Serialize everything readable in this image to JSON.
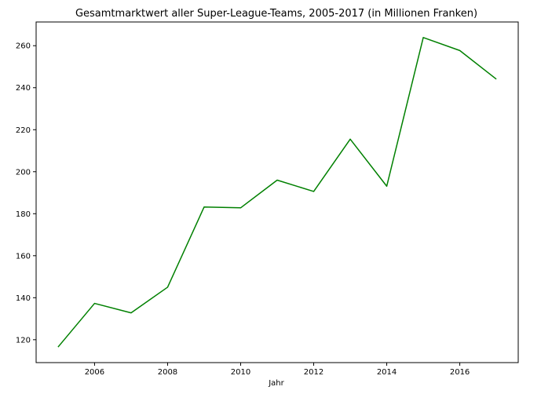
{
  "chart_data": {
    "type": "line",
    "title": "Gesamtmarktwert aller Super-League-Teams, 2005-2017 (in Millionen Franken)",
    "xlabel": "Jahr",
    "ylabel": "",
    "x": [
      2005,
      2006,
      2007,
      2008,
      2009,
      2010,
      2011,
      2012,
      2013,
      2014,
      2015,
      2016,
      2017
    ],
    "series": [
      {
        "values": [
          116.5,
          137.3,
          132.8,
          145.0,
          183.2,
          182.8,
          196.0,
          190.6,
          215.5,
          193.1,
          263.9,
          257.7,
          244.1
        ],
        "color": "#008000"
      }
    ],
    "xlim": [
      2004.4,
      2017.6
    ],
    "ylim": [
      109.1,
      271.3
    ],
    "xticks": [
      2006,
      2008,
      2010,
      2012,
      2014,
      2016
    ],
    "yticks": [
      120,
      140,
      160,
      180,
      200,
      220,
      240,
      260
    ],
    "grid": false,
    "legend": "none"
  }
}
